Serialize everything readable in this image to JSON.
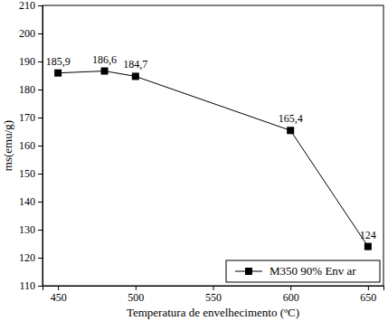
{
  "chart_data": {
    "type": "line",
    "x_label": "Temperatura de envelhecimento (ºC)",
    "y_label": "ms(emu/g)",
    "x": [
      450,
      480,
      500,
      600,
      650
    ],
    "series": [
      {
        "name": "M350 90% Env ar",
        "color": "#000000",
        "marker": "square",
        "line_style": "solid",
        "values": [
          185.9,
          186.6,
          184.7,
          165.4,
          124
        ],
        "value_labels": [
          "185,9",
          "186,6",
          "184,7",
          "165,4",
          "124"
        ]
      }
    ],
    "xlim": [
      440,
      660
    ],
    "xticks": [
      450,
      500,
      550,
      600,
      650
    ],
    "ylim": [
      110,
      210
    ],
    "yticks": [
      110,
      120,
      130,
      140,
      150,
      160,
      170,
      180,
      190,
      200,
      210
    ],
    "data_labels": true,
    "legend": "lower right",
    "grid": false
  }
}
